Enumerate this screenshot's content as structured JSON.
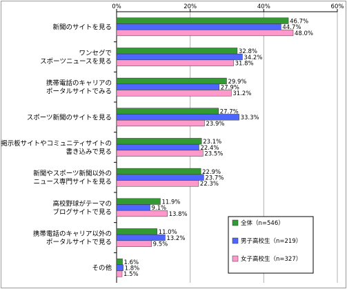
{
  "chart_data": {
    "type": "bar",
    "orientation": "horizontal",
    "categories": [
      [
        "新聞のサイトを見る"
      ],
      [
        "ワンセグで",
        "スポーツニュースを見る"
      ],
      [
        "携帯電話のキャリアの",
        "ポータルサイトでみる"
      ],
      [
        "スポーツ新聞のサイトを見る"
      ],
      [
        "掲示板サイトやコミュニティサイトの",
        "書き込みで見る"
      ],
      [
        "新聞やスポーツ新聞以外の",
        "ニュース専門サイトを見る"
      ],
      [
        "高校野球がテーマの",
        "ブログサイトで見る"
      ],
      [
        "携帯電話のキャリア以外の",
        "ポータルサイトで見る"
      ],
      [
        "その他"
      ]
    ],
    "series": [
      {
        "name": "全体（n=546）",
        "color": "#339933",
        "values": [
          46.7,
          32.8,
          29.9,
          27.7,
          23.1,
          22.9,
          11.9,
          11.0,
          1.6
        ]
      },
      {
        "name": "男子高校生（n=219）",
        "color": "#4d66ff",
        "values": [
          44.7,
          34.2,
          27.9,
          33.3,
          22.4,
          23.7,
          9.1,
          13.2,
          1.8
        ]
      },
      {
        "name": "女子高校生（n=327）",
        "color": "#ff99cc",
        "values": [
          48.0,
          31.8,
          31.2,
          23.9,
          23.5,
          22.3,
          13.8,
          9.5,
          1.5
        ]
      }
    ],
    "value_labels": [
      [
        "46.7%",
        "32.8%",
        "29.9%",
        "27.7%",
        "23.1%",
        "22.9%",
        "11.9%",
        "11.0%",
        "1.6%"
      ],
      [
        "44.7%",
        "34.2%",
        "27.9%",
        "33.3%",
        "22.4%",
        "23.7%",
        "9.1%",
        "13.2%",
        "1.8%"
      ],
      [
        "48.0%",
        "31.8%",
        "31.2%",
        "23.9%",
        "23.5%",
        "22.3%",
        "13.8%",
        "9.5%",
        "1.5%"
      ]
    ],
    "xlim": [
      0,
      60
    ],
    "xticks": [
      0,
      20,
      40,
      60
    ],
    "xtick_labels": [
      "0%",
      "20%",
      "40%",
      "60%"
    ],
    "grid": true,
    "legend_position": "bottom-right"
  }
}
